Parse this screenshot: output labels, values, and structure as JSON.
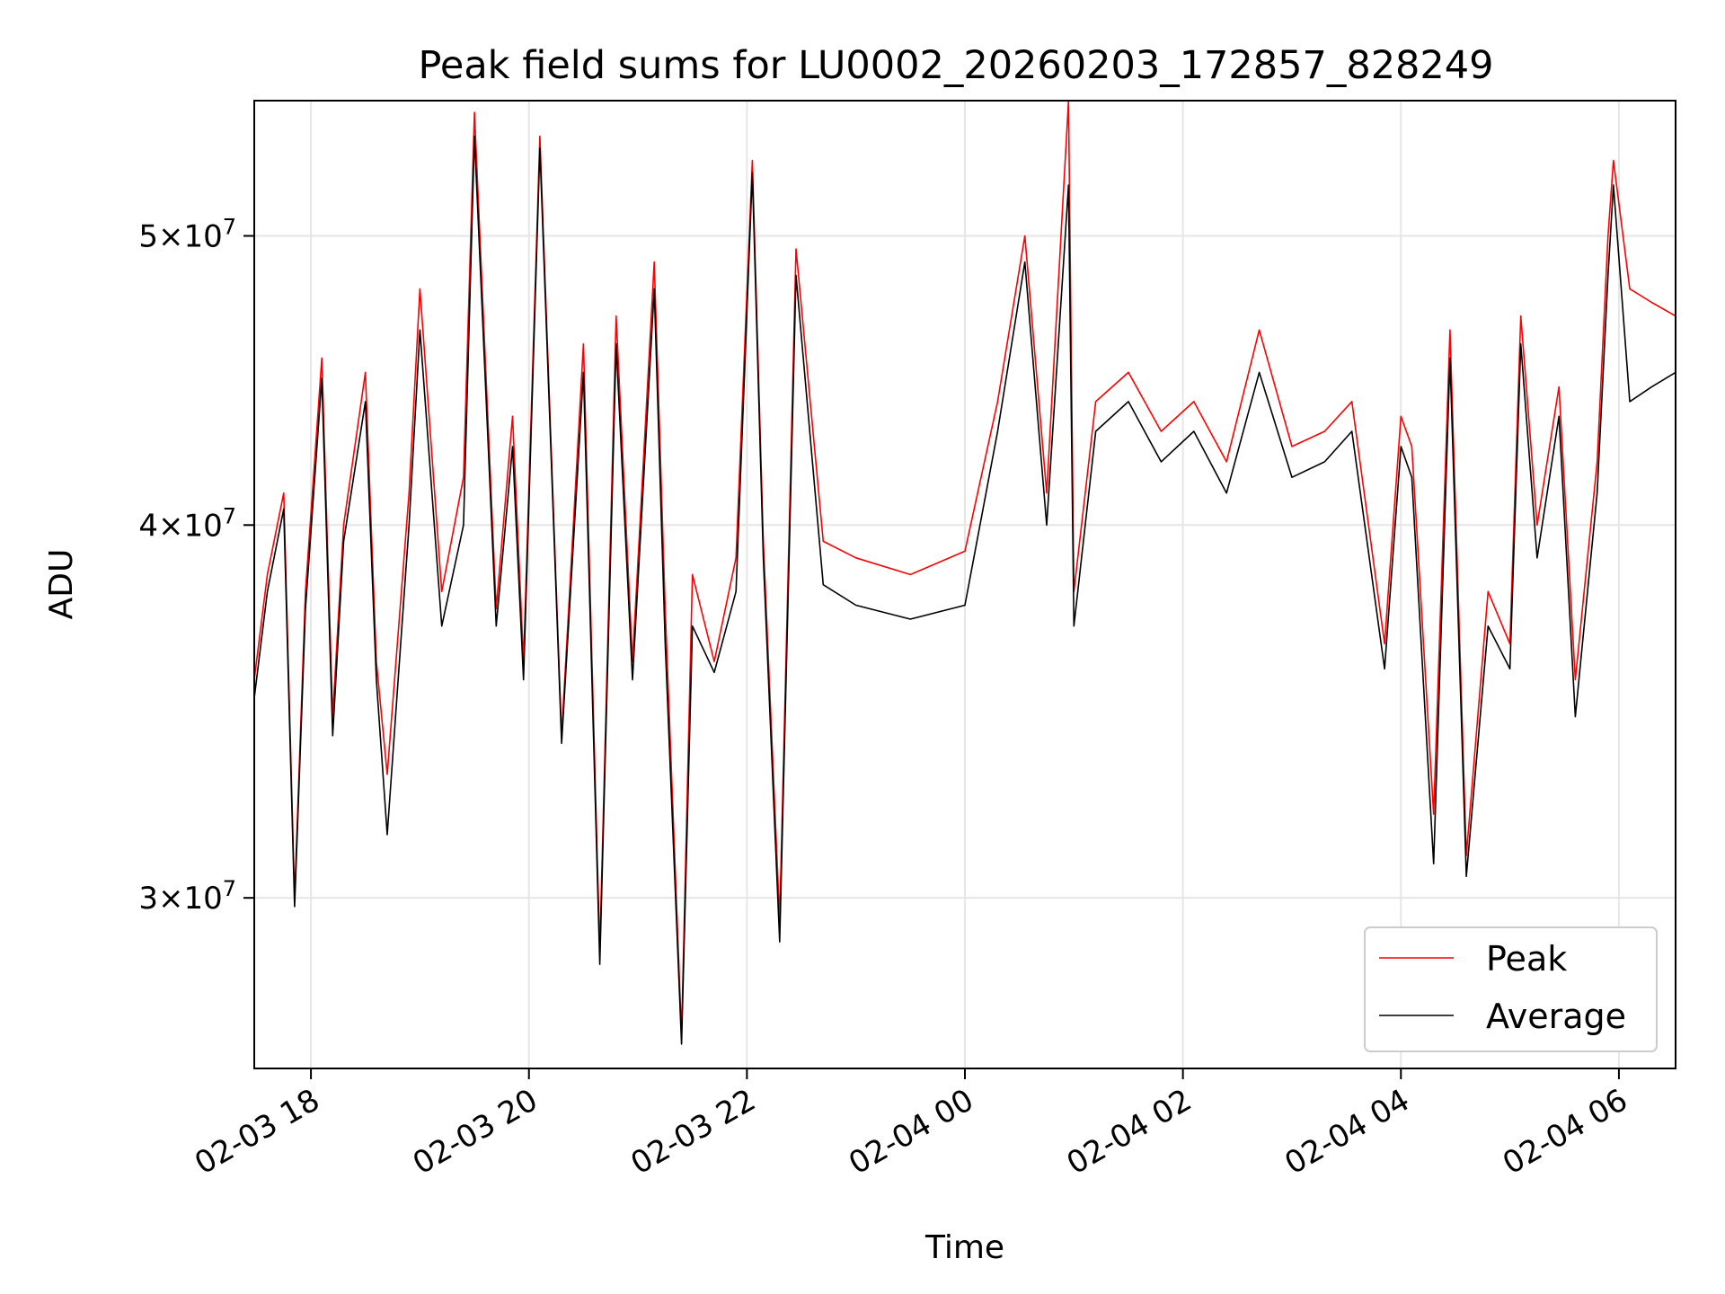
{
  "chart_data": {
    "type": "line",
    "title": "Peak field sums for LU0002_20260203_172857_828249",
    "xlabel": "Time",
    "ylabel": "ADU",
    "yscale": "log",
    "xlim_hours": [
      -6.52,
      6.52
    ],
    "ylim": [
      26300000,
      55500000
    ],
    "grid": true,
    "legend_position": "lower right",
    "x_ticks": [
      {
        "hour": -6,
        "label": "02-03 18"
      },
      {
        "hour": -4,
        "label": "02-03 20"
      },
      {
        "hour": -2,
        "label": "02-03 22"
      },
      {
        "hour": 0,
        "label": "02-04 00"
      },
      {
        "hour": 2,
        "label": "02-04 02"
      },
      {
        "hour": 4,
        "label": "02-04 04"
      },
      {
        "hour": 6,
        "label": "02-04 06"
      }
    ],
    "y_ticks": [
      {
        "value": 30000000,
        "mantissa": "3",
        "exponent": "7"
      },
      {
        "value": 40000000,
        "mantissa": "4",
        "exponent": "7"
      },
      {
        "value": 50000000,
        "mantissa": "5",
        "exponent": "7"
      }
    ],
    "tick_times_sign": "×10",
    "x_hours": [
      -6.52,
      -6.4,
      -6.25,
      -6.15,
      -6.05,
      -5.9,
      -5.8,
      -5.7,
      -5.5,
      -5.4,
      -5.3,
      -5.1,
      -5.0,
      -4.8,
      -4.6,
      -4.5,
      -4.3,
      -4.15,
      -4.05,
      -3.9,
      -3.7,
      -3.5,
      -3.35,
      -3.2,
      -3.05,
      -2.85,
      -2.75,
      -2.6,
      -2.5,
      -2.3,
      -2.1,
      -1.95,
      -1.85,
      -1.7,
      -1.55,
      -1.3,
      -1.0,
      -0.5,
      0.0,
      0.3,
      0.55,
      0.75,
      0.95,
      1.0,
      1.2,
      1.5,
      1.8,
      2.1,
      2.4,
      2.7,
      3.0,
      3.3,
      3.55,
      3.85,
      4.0,
      4.1,
      4.3,
      4.45,
      4.6,
      4.8,
      5.0,
      5.1,
      5.25,
      5.45,
      5.6,
      5.8,
      5.9,
      5.95,
      6.1,
      6.3,
      6.52
    ],
    "series": [
      {
        "name": "Peak",
        "color": "#ff0000",
        "values": [
          35500000,
          38500000,
          41000000,
          30000000,
          38000000,
          45500000,
          34500000,
          40000000,
          45000000,
          36000000,
          33000000,
          41000000,
          48000000,
          38000000,
          41500000,
          55000000,
          37500000,
          43500000,
          36000000,
          54000000,
          34000000,
          46000000,
          28800000,
          47000000,
          36000000,
          49000000,
          37500000,
          27000000,
          38500000,
          36000000,
          39000000,
          53000000,
          39500000,
          29500000,
          49500000,
          39500000,
          39000000,
          38500000,
          39200000,
          44000000,
          50000000,
          41000000,
          55500000,
          38000000,
          44000000,
          45000000,
          43000000,
          44000000,
          42000000,
          46500000,
          42500000,
          43000000,
          44000000,
          36500000,
          43500000,
          42500000,
          32000000,
          46500000,
          31000000,
          38000000,
          36500000,
          47000000,
          40000000,
          44500000,
          35500000,
          42000000,
          50000000,
          53000000,
          48000000,
          47500000,
          47000000
        ]
      },
      {
        "name": "Average",
        "color": "#000000",
        "values": [
          35000000,
          38000000,
          40500000,
          29800000,
          37500000,
          44800000,
          34000000,
          39500000,
          44000000,
          35500000,
          31500000,
          40000000,
          46500000,
          37000000,
          40000000,
          54000000,
          37000000,
          42500000,
          35500000,
          53500000,
          33800000,
          45000000,
          28500000,
          46000000,
          35500000,
          48000000,
          36500000,
          26800000,
          37000000,
          35700000,
          38000000,
          52500000,
          39000000,
          29000000,
          48500000,
          38200000,
          37600000,
          37200000,
          37600000,
          43000000,
          49000000,
          40000000,
          52000000,
          37000000,
          43000000,
          44000000,
          42000000,
          43000000,
          41000000,
          45000000,
          41500000,
          42000000,
          43000000,
          35800000,
          42500000,
          41500000,
          30800000,
          45500000,
          30500000,
          37000000,
          35800000,
          46000000,
          39000000,
          43500000,
          34500000,
          41000000,
          48500000,
          52000000,
          44000000,
          44500000,
          45000000
        ]
      }
    ]
  }
}
